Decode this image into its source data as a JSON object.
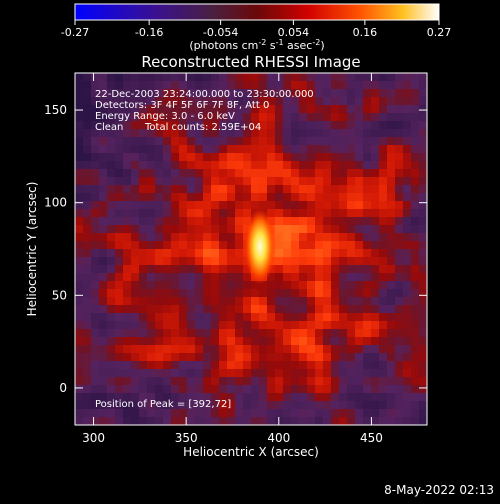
{
  "colorbar": {
    "ticks": [
      "-0.27",
      "-0.16",
      "-0.054",
      "0.054",
      "0.16",
      "0.27"
    ],
    "tick_values": [
      -0.27,
      -0.16,
      -0.054,
      0.054,
      0.16,
      0.27
    ],
    "range": [
      -0.27,
      0.27
    ],
    "units_main": "(photons cm",
    "units_exp1": "-2",
    "units_mid": " s",
    "units_exp2": "-1",
    "units_mid2": " asec",
    "units_exp3": "-2",
    "units_end": ")",
    "colors": [
      "#0000ff",
      "#3a00a0",
      "#4a1a4a",
      "#800000",
      "#ff2000",
      "#ff8000",
      "#ffff40",
      "#ffffff"
    ]
  },
  "title": "Reconstructed RHESSI Image",
  "annotations": {
    "line1": "22-Dec-2003 23:24:00.000 to 23:30:00.000",
    "line2": "Detectors: 3F 4F 5F 6F 7F 8F, Att 0",
    "line3": "Energy Range: 3.0 - 6.0 keV",
    "line4_a": "Clean",
    "line4_b": "Total counts: 2.59E+04",
    "peak": "Position of Peak = [392,72]"
  },
  "footer": {
    "timestamp": "8-May-2022 02:13"
  },
  "chart_data": {
    "type": "heatmap",
    "title": "Reconstructed RHESSI Image",
    "xlabel": "Heliocentric X (arcsec)",
    "ylabel": "Heliocentric Y (arcsec)",
    "xlim": [
      290,
      480
    ],
    "ylim": [
      -20,
      170
    ],
    "xticks": [
      300,
      350,
      400,
      450
    ],
    "yticks": [
      0,
      50,
      100,
      150
    ],
    "peak": [
      392,
      72
    ],
    "colors": {
      "background": "#1a0a2e",
      "low": "#4a2a6a",
      "mid": "#a01010",
      "high": "#ff3000",
      "peak": "#ffff80"
    }
  }
}
